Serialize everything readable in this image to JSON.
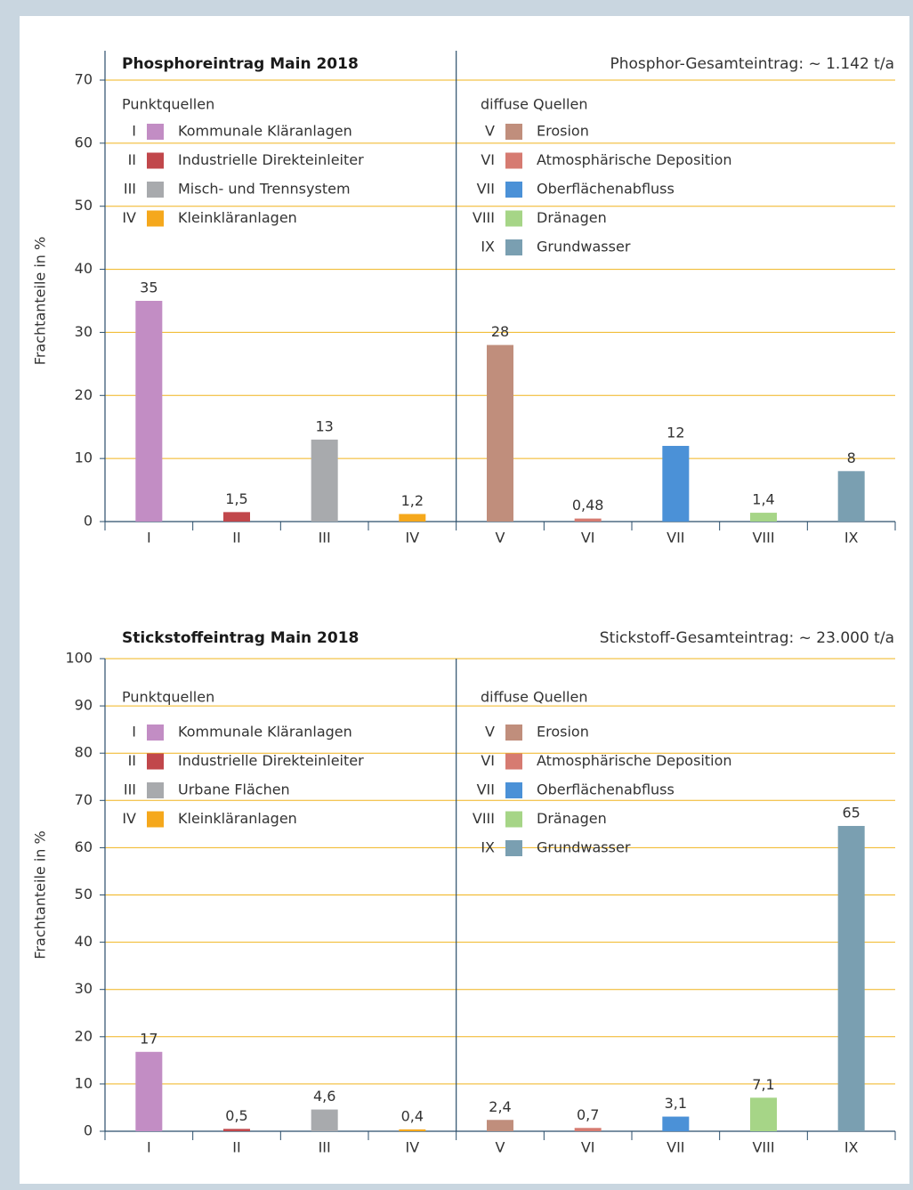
{
  "chart_data": [
    {
      "type": "bar",
      "title": "Phosphoreintrag Main 2018",
      "subtitle": "Phosphor-Gesamteintrag: ~ 1.142 t/a",
      "y_label": "Frachtanteile in %",
      "categories": [
        "I",
        "II",
        "III",
        "IV",
        "V",
        "VI",
        "VII",
        "VIII",
        "IX"
      ],
      "values": [
        35,
        1.5,
        13,
        1.2,
        28,
        0.48,
        12,
        1.4,
        8
      ],
      "value_labels": [
        "35",
        "1,5",
        "13",
        "1,2",
        "28",
        "0,48",
        "12",
        "1,4",
        "8"
      ],
      "colors": [
        "#c28dc4",
        "#c1474b",
        "#a8aaad",
        "#f5a81c",
        "#c08e7c",
        "#d67b71",
        "#4b91d7",
        "#a6d587",
        "#7a9fb1"
      ],
      "ylim": [
        0,
        70
      ],
      "yticks": [
        0,
        10,
        20,
        30,
        40,
        50,
        60,
        70
      ],
      "grid": true,
      "legend": [
        {
          "title": "Punktquellen",
          "labels": [
            "Kommunale Kläranlagen",
            "Industrielle Direkteinleiter",
            "Misch- und Trennsystem",
            "Kleinkläranlagen"
          ]
        },
        {
          "title": "diffuse Quellen",
          "labels": [
            "Erosion",
            "Atmosphärische Deposition",
            "Oberflächenabfluss",
            "Dränagen",
            "Grundwasser"
          ]
        }
      ]
    },
    {
      "type": "bar",
      "title": "Stickstoffeintrag Main 2018",
      "subtitle": "Stickstoff-Gesamteintrag: ~ 23.000 t/a",
      "y_label": "Frachtanteile in %",
      "categories": [
        "I",
        "II",
        "III",
        "IV",
        "V",
        "VI",
        "VII",
        "VIII",
        "IX"
      ],
      "values": [
        16.8,
        0.5,
        4.6,
        0.4,
        2.4,
        0.7,
        3.1,
        7.1,
        64.6
      ],
      "value_labels": [
        "17",
        "0,5",
        "4,6",
        "0,4",
        "2,4",
        "0,7",
        "3,1",
        "7,1",
        "65"
      ],
      "colors": [
        "#c28dc4",
        "#c1474b",
        "#a8aaad",
        "#f5a81c",
        "#c08e7c",
        "#d67b71",
        "#4b91d7",
        "#a6d587",
        "#7a9fb1"
      ],
      "ylim": [
        0,
        100
      ],
      "yticks": [
        0,
        10,
        20,
        30,
        40,
        50,
        60,
        70,
        80,
        90,
        100
      ],
      "grid": true,
      "legend": [
        {
          "title": "Punktquellen",
          "labels": [
            "Kommunale Kläranlagen",
            "Industrielle Direkteinleiter",
            "Urbane Flächen",
            "Kleinkläranlagen"
          ]
        },
        {
          "title": "diffuse Quellen",
          "labels": [
            "Erosion",
            "Atmosphärische Deposition",
            "Oberflächenabfluss",
            "Dränagen",
            "Grundwasser"
          ]
        }
      ]
    }
  ]
}
